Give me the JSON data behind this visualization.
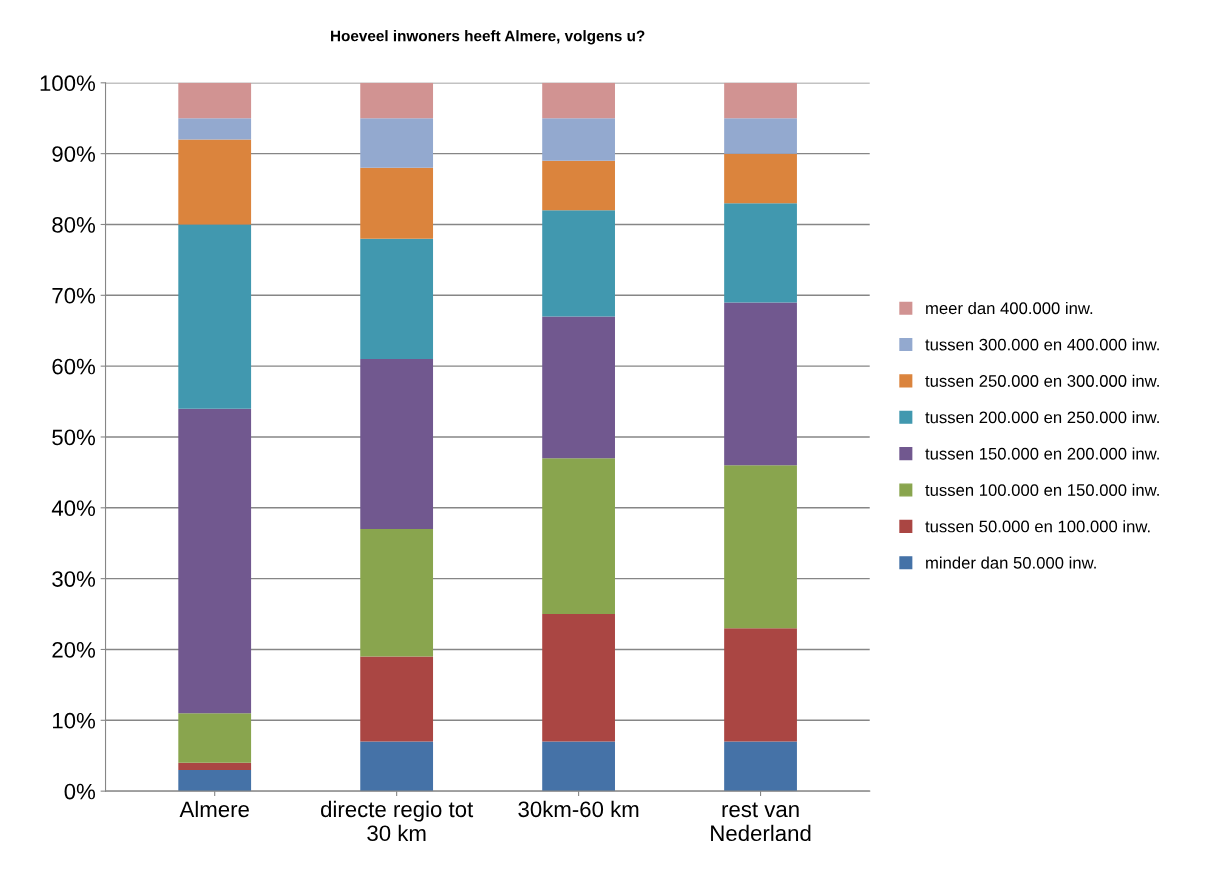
{
  "chart_data": {
    "type": "bar",
    "stacked": true,
    "title": "Hoeveel inwoners heeft Almere, volgens u?",
    "categories": [
      "Almere",
      "directe regio tot\n30 km",
      "30km-60 km",
      "rest van\nNederland"
    ],
    "series": [
      {
        "name": "minder dan 50.000 inw.",
        "color": "#4572a7",
        "values": [
          3,
          7,
          7,
          7
        ]
      },
      {
        "name": "tussen 50.000 en 100.000 inw.",
        "color": "#aa4643",
        "values": [
          1,
          12,
          18,
          16
        ]
      },
      {
        "name": "tussen 100.000 en 150.000 inw.",
        "color": "#89a54e",
        "values": [
          7,
          18,
          22,
          23
        ]
      },
      {
        "name": "tussen 150.000 en 200.000 inw.",
        "color": "#71588f",
        "values": [
          43,
          24,
          20,
          23
        ]
      },
      {
        "name": "tussen 200.000 en 250.000 inw.",
        "color": "#4198af",
        "values": [
          26,
          17,
          15,
          14
        ]
      },
      {
        "name": "tussen 250.000 en 300.000 inw.",
        "color": "#db843d",
        "values": [
          12,
          10,
          7,
          7
        ]
      },
      {
        "name": "tussen 300.000 en 400.000 inw.",
        "color": "#93a9cf",
        "values": [
          3,
          7,
          6,
          5
        ]
      },
      {
        "name": "meer dan 400.000 inw.",
        "color": "#d19392",
        "values": [
          5,
          5,
          5,
          5
        ]
      }
    ],
    "ylim": [
      0,
      100
    ],
    "yticks": [
      {
        "value": 0,
        "label": "0%"
      },
      {
        "value": 10,
        "label": "10%"
      },
      {
        "value": 20,
        "label": "20%"
      },
      {
        "value": 30,
        "label": "30%"
      },
      {
        "value": 40,
        "label": "40%"
      },
      {
        "value": 50,
        "label": "50%"
      },
      {
        "value": 60,
        "label": "60%"
      },
      {
        "value": 70,
        "label": "70%"
      },
      {
        "value": 80,
        "label": "80%"
      },
      {
        "value": 90,
        "label": "90%"
      },
      {
        "value": 100,
        "label": "100%"
      }
    ],
    "grid": "y",
    "legend": "right"
  }
}
